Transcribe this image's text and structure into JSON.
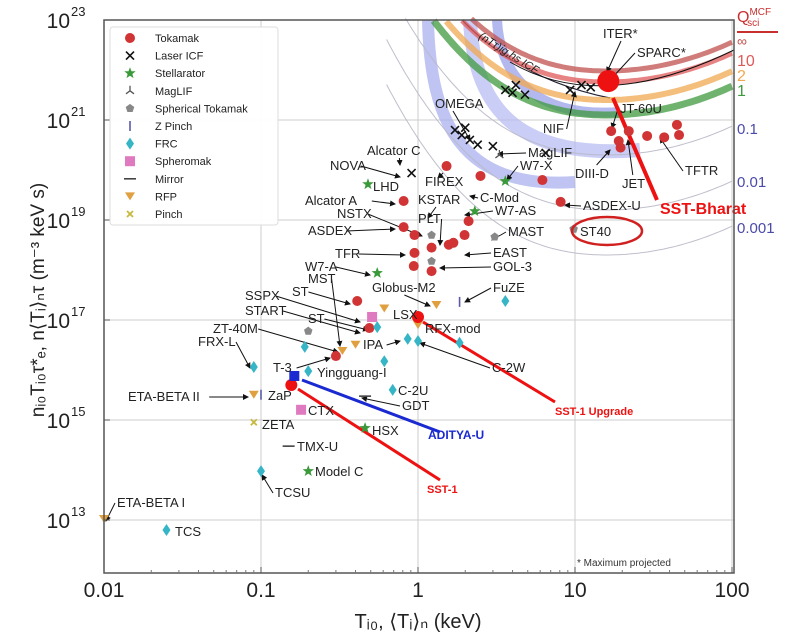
{
  "chart_data": {
    "type": "scatter",
    "xlabel": "Tᵢ₀, ⟨Tᵢ⟩ₙ (keV)",
    "ylabel": "nᵢ₀Tᵢ₀τ*ₑ, n⟨Tᵢ⟩ₙτ (m⁻³ keV s)",
    "xscale": "log",
    "yscale": "log",
    "xlim": [
      0.01,
      100
    ],
    "ylim": [
      800000000000.0,
      1e+23
    ],
    "grid": true,
    "legend_position": "top-left",
    "x_ticks": [
      {
        "value": 0.01,
        "label": "0.01"
      },
      {
        "value": 0.1,
        "label": "0.1"
      },
      {
        "value": 1,
        "label": "1"
      },
      {
        "value": 10,
        "label": "10"
      },
      {
        "value": 100,
        "label": "100"
      }
    ],
    "y_ticks": [
      {
        "value": 1e+23,
        "base": "10",
        "exp": "23"
      },
      {
        "value": 1e+21,
        "base": "10",
        "exp": "21"
      },
      {
        "value": 1e+19,
        "base": "10",
        "exp": "19"
      },
      {
        "value": 1e+17,
        "base": "10",
        "exp": "17"
      },
      {
        "value": 1000000000000000.0,
        "base": "10",
        "exp": "15"
      },
      {
        "value": 10000000000000.0,
        "base": "10",
        "exp": "13"
      }
    ],
    "q_header": "Q",
    "q_header_sup": "MCF",
    "q_header_sub": "sci",
    "q_contours": [
      {
        "label": "∞",
        "color": "#c0504d"
      },
      {
        "label": "10",
        "color": "#e05a5a"
      },
      {
        "label": "2",
        "color": "#f0a850"
      },
      {
        "label": "1",
        "color": "#3f9a3f"
      },
      {
        "label": "0.1",
        "color": "#4a4aa8"
      },
      {
        "label": "0.01",
        "color": "#4a4aa8"
      },
      {
        "label": "0.001",
        "color": "#4a4aa8"
      }
    ],
    "icf_curve_label": "(nTτ)ig,hs ICF",
    "footnote": "* Maximum projected",
    "series": [
      {
        "name": "Tokamak",
        "marker": "circle",
        "color": "#d03434",
        "points": [
          [
            1.52,
            1.2e+20
          ],
          [
            0.81,
            2.4e+19
          ],
          [
            0.81,
            7.2e+18
          ],
          [
            0.95,
            5e+18
          ],
          [
            0.95,
            2.2e+18
          ],
          [
            0.94,
            1.2e+18
          ],
          [
            1.22,
            9.5e+17
          ],
          [
            1.22,
            2.8e+18
          ],
          [
            1.57,
            3.2e+18
          ],
          [
            1.68,
            3.5e+18
          ],
          [
            1.98,
            5e+18
          ],
          [
            2.1,
            9.5e+18
          ],
          [
            2.5,
            7.6e+19
          ],
          [
            6.2,
            6.3e+19
          ],
          [
            8.1,
            2.3e+19
          ],
          [
            17,
            6e+20
          ],
          [
            22,
            6e+20
          ],
          [
            19,
            3.8e+20
          ],
          [
            19.5,
            2.8e+20
          ],
          [
            28.8,
            4.8e+20
          ],
          [
            37,
            4.5e+20
          ],
          [
            44.6,
            8e+20
          ],
          [
            46,
            5e+20
          ],
          [
            0.41,
            2.4e+17
          ],
          [
            0.49,
            6.9e+16
          ],
          [
            0.3,
            1.9e+16
          ]
        ]
      },
      {
        "name": "Laser ICF",
        "marker": "x",
        "color": "#111111",
        "points": [
          [
            0.91,
            8.7e+19
          ],
          [
            1.72,
            6.3e+20
          ],
          [
            1.9,
            5e+20
          ],
          [
            2.14,
            4e+20
          ],
          [
            2.0,
            7e+20
          ],
          [
            2.4,
            3.2e+20
          ],
          [
            3.0,
            3e+20
          ],
          [
            6.5,
            2.2e+20
          ],
          [
            3.6,
            4e+21
          ],
          [
            4.2,
            5e+21
          ],
          [
            4.8,
            3.2e+21
          ],
          [
            4.0,
            3.5e+21
          ],
          [
            9.3,
            4e+21
          ],
          [
            11,
            5e+21
          ],
          [
            12.6,
            4.5e+21
          ]
        ]
      },
      {
        "name": "Stellarator",
        "marker": "star",
        "color": "#3a9a3a",
        "points": [
          [
            0.48,
            5.2e+19
          ],
          [
            0.55,
            8.7e+17
          ],
          [
            2.3,
            1.5e+19
          ],
          [
            3.6,
            6e+19
          ],
          [
            0.46,
            690000000000000.0
          ],
          [
            0.2,
            95000000000000.0
          ]
        ]
      },
      {
        "name": "MagLIF",
        "marker": "tri",
        "color": "#555555",
        "points": [
          [
            3.3,
            2e+20
          ]
        ]
      },
      {
        "name": "Spherical Tokamak",
        "marker": "pentagon",
        "color": "#888888",
        "points": [
          [
            1.22,
            5e+18
          ],
          [
            1.22,
            1.5e+18
          ],
          [
            3.08,
            4.6e+18
          ],
          [
            9.8,
            6.6e+18
          ],
          [
            0.2,
            6e+16
          ]
        ]
      },
      {
        "name": "Z Pinch",
        "marker": "vline",
        "color": "#5a5aa8",
        "points": [
          [
            1.84,
            2.3e+17
          ],
          [
            0.1,
            3200000000000000.0
          ]
        ]
      },
      {
        "name": "FRC",
        "marker": "diamond",
        "color": "#35b5c5",
        "points": [
          [
            3.6,
            2.4e+17
          ],
          [
            0.55,
            7.2e+16
          ],
          [
            0.19,
            2.9e+16
          ],
          [
            0.86,
            4.2e+16
          ],
          [
            1.0,
            3.8e+16
          ],
          [
            1.84,
            3.5e+16
          ],
          [
            0.09,
            1.15e+16
          ],
          [
            0.2,
            9500000000000000.0
          ],
          [
            0.61,
            1.5e+16
          ],
          [
            0.69,
            4000000000000000.0
          ],
          [
            0.1,
            95000000000000.0
          ],
          [
            0.025,
            6300000000000.0
          ]
        ]
      },
      {
        "name": "Spheromak",
        "marker": "square",
        "color": "#e07ac0",
        "points": [
          [
            0.51,
            1.15e+17
          ],
          [
            0.18,
            1600000000000000.0
          ]
        ]
      },
      {
        "name": "Mirror",
        "marker": "hline",
        "color": "#444444",
        "points": [
          [
            0.46,
            3000000000000000.0
          ],
          [
            0.15,
            300000000000000.0
          ]
        ]
      },
      {
        "name": "RFP",
        "marker": "tridown",
        "color": "#e0a040",
        "points": [
          [
            0.61,
            1.7e+17
          ],
          [
            1.31,
            2e+17
          ],
          [
            1.0,
            7.9e+16
          ],
          [
            0.33,
            2.4e+16
          ],
          [
            0.4,
            3.2e+16
          ],
          [
            0.09,
            3200000000000000.0
          ],
          [
            0.01,
            10500000000000.0
          ]
        ]
      },
      {
        "name": "Pinch",
        "marker": "smallx",
        "color": "#c8b840",
        "points": [
          [
            0.09,
            900000000000000.0
          ]
        ]
      }
    ],
    "highlights": [
      {
        "label": "SST-Bharat",
        "T": 16.3,
        "ntau": 6e+21,
        "marker": "circle",
        "color": "#ee1111"
      },
      {
        "label": "SST-1 Upgrade",
        "T": 1.0,
        "ntau": 1.15e+17,
        "marker": "circle",
        "color": "#ee1111"
      },
      {
        "label": "SST-1",
        "T": 0.156,
        "ntau": 5000000000000000.0,
        "marker": "circle",
        "color": "#ee1111"
      },
      {
        "label": "ADITYA-U",
        "T": 0.163,
        "ntau": 7600000000000000.0,
        "marker": "square",
        "color": "#1a2ad0"
      }
    ],
    "annotations": [
      "ITER*",
      "SPARC*",
      "OMEGA",
      "NIF",
      "JT-60U",
      "MagLIF",
      "W7-X",
      "Alcator C",
      "NOVA",
      "FIREX",
      "C-Mod",
      "DIII-D",
      "JET",
      "TFTR",
      "LHD",
      "Alcator A",
      "KSTAR",
      "W7-AS",
      "ASDEX-U",
      "NSTX",
      "PLT",
      "MAST",
      "ST40",
      "ASDEX",
      "TFR",
      "EAST",
      "GOL-3",
      "W7-A",
      "MST",
      "Globus-M2",
      "FuZE",
      "SSPX",
      "ST",
      "START",
      "ST",
      "LSX",
      "RFX-mod",
      "ZT-40M",
      "FRX-L",
      "IPA",
      "C-2W",
      "T-3",
      "Yingguang-I",
      "ZaP",
      "ETA-BETA II",
      "C-2U",
      "GDT",
      "CTX",
      "ZETA",
      "HSX",
      "TMX-U",
      "Model C",
      "TCSU",
      "ETA-BETA I",
      "TCS"
    ]
  }
}
